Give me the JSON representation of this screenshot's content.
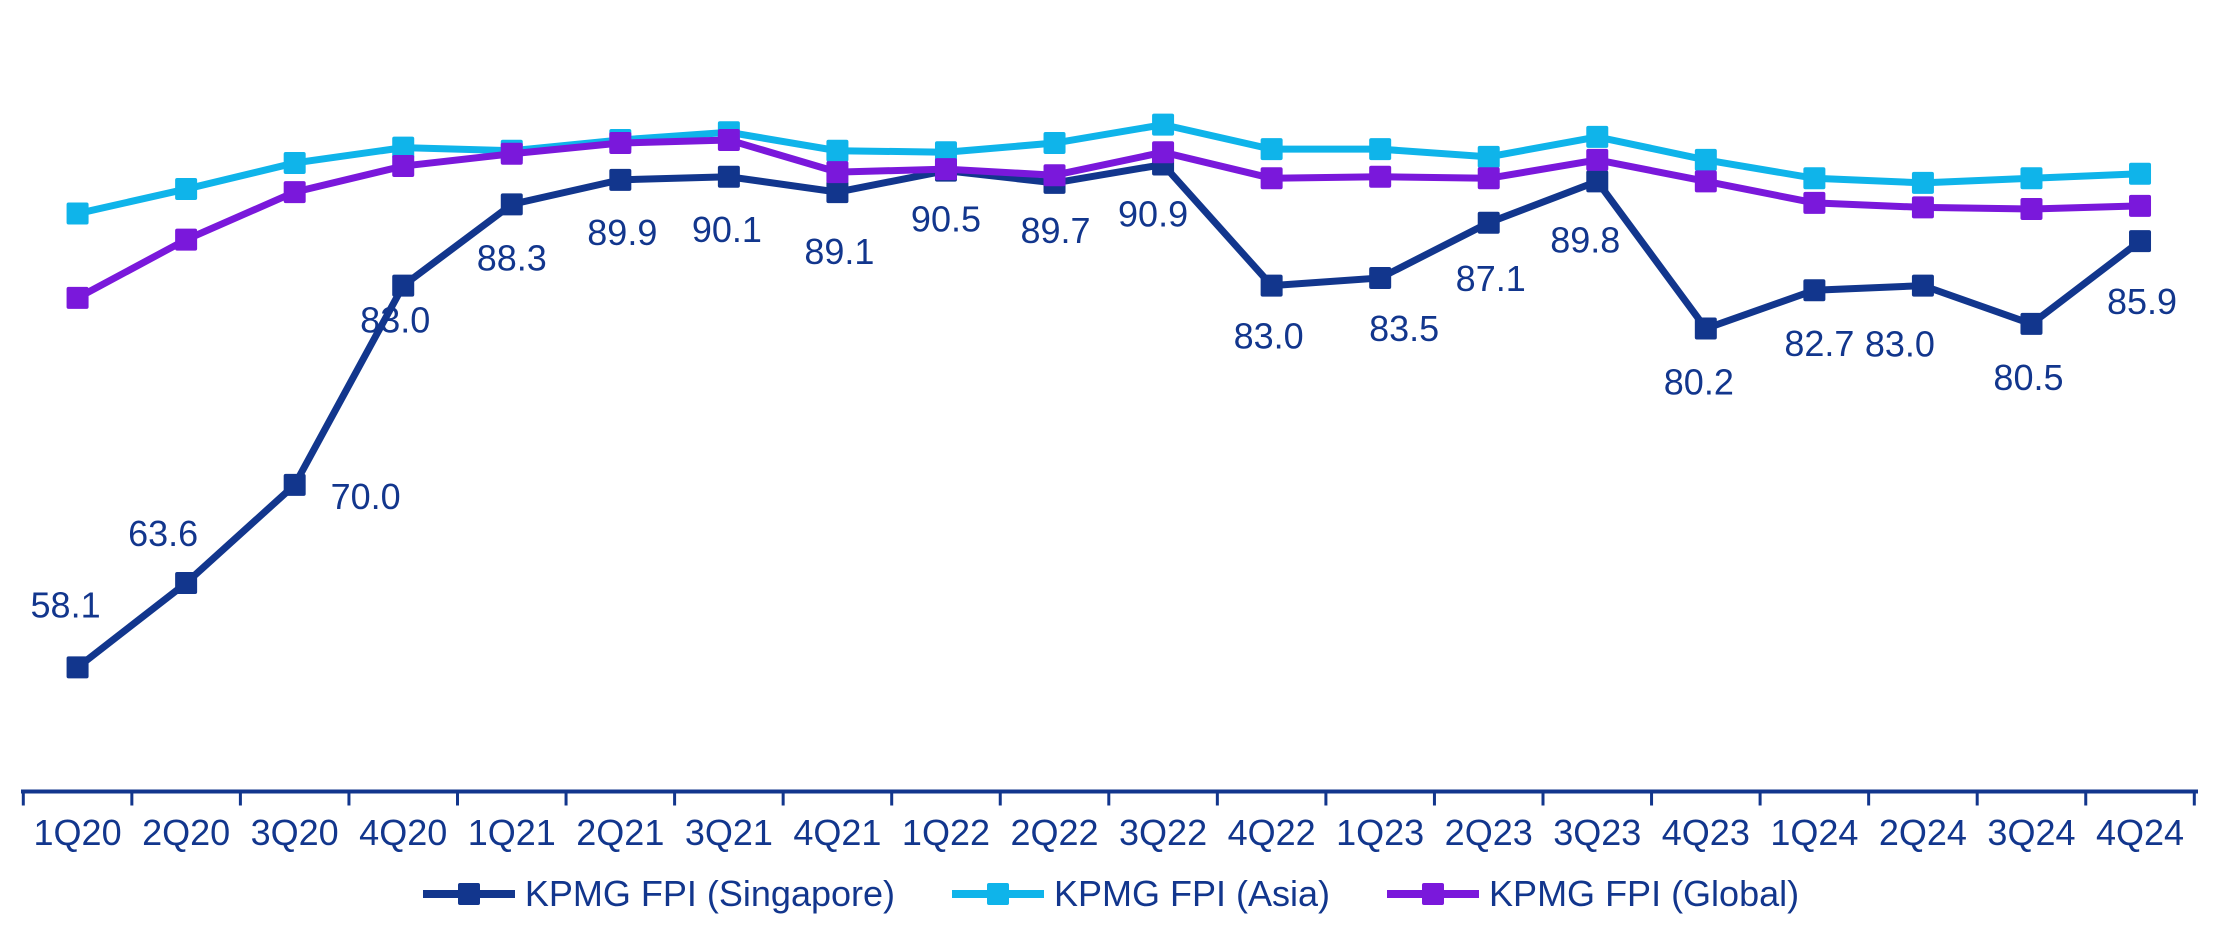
{
  "chart_data": {
    "type": "line",
    "title": "",
    "xlabel": "",
    "ylabel": "",
    "ylim": [
      50,
      96
    ],
    "grid": false,
    "legend_position": "bottom",
    "axis_color": "#12368D",
    "text_color": "#12368D",
    "background_color": "#ffffff",
    "value_labels_series": "KPMG FPI (Singapore)",
    "categories": [
      "1Q20",
      "2Q20",
      "3Q20",
      "4Q20",
      "1Q21",
      "2Q21",
      "3Q21",
      "4Q21",
      "1Q22",
      "2Q22",
      "3Q22",
      "4Q22",
      "1Q23",
      "2Q23",
      "3Q23",
      "4Q23",
      "1Q24",
      "2Q24",
      "3Q24",
      "4Q24"
    ],
    "series": [
      {
        "name": "KPMG FPI (Singapore)",
        "color": "#12368D",
        "marker": "square",
        "values": [
          58.1,
          63.6,
          70.0,
          83.0,
          88.3,
          89.9,
          90.1,
          89.1,
          90.5,
          89.7,
          90.9,
          83.0,
          83.5,
          87.1,
          89.8,
          80.2,
          82.7,
          83.0,
          80.5,
          85.9
        ],
        "labels": [
          "58.1",
          "63.6",
          "70.0",
          "83.0",
          "88.3",
          "89.9",
          "90.1",
          "89.1",
          "90.5",
          "89.7",
          "90.9",
          "83.0",
          "83.5",
          "87.1",
          "89.8",
          "80.2",
          "82.7",
          "83.0",
          "80.5",
          "85.9"
        ],
        "label_offsets": [
          [
            -12,
            -63
          ],
          [
            -23,
            -50
          ],
          [
            71,
            11
          ],
          [
            -8,
            34
          ],
          [
            0,
            53
          ],
          [
            2,
            52
          ],
          [
            -2,
            52
          ],
          [
            2,
            59
          ],
          [
            0,
            48
          ],
          [
            1,
            47
          ],
          [
            -10,
            49
          ],
          [
            -3,
            50
          ],
          [
            24,
            50
          ],
          [
            2,
            55
          ],
          [
            -12,
            58
          ],
          [
            -7,
            53
          ],
          [
            5,
            53
          ],
          [
            -23,
            58
          ],
          [
            -3,
            53
          ],
          [
            2,
            60
          ]
        ]
      },
      {
        "name": "KPMG FPI (Asia)",
        "color": "#0FB4EA",
        "marker": "square",
        "values": [
          87.7,
          89.3,
          91.0,
          92.0,
          91.8,
          92.5,
          93.0,
          91.8,
          91.7,
          92.3,
          93.5,
          91.9,
          91.9,
          91.4,
          92.7,
          91.2,
          90.0,
          89.7,
          90.0,
          90.3
        ]
      },
      {
        "name": "KPMG FPI (Global)",
        "color": "#7A18DB",
        "marker": "square",
        "values": [
          82.2,
          86.0,
          89.1,
          90.8,
          91.6,
          92.3,
          92.5,
          90.4,
          90.6,
          90.2,
          91.7,
          90.0,
          90.1,
          90.0,
          91.2,
          89.8,
          88.4,
          88.1,
          88.0,
          88.2
        ]
      }
    ]
  },
  "legend": {
    "items": [
      {
        "label": "KPMG FPI (Singapore)",
        "color": "#12368D"
      },
      {
        "label": "KPMG FPI (Asia)",
        "color": "#0FB4EA"
      },
      {
        "label": "KPMG FPI (Global)",
        "color": "#7A18DB"
      }
    ]
  }
}
